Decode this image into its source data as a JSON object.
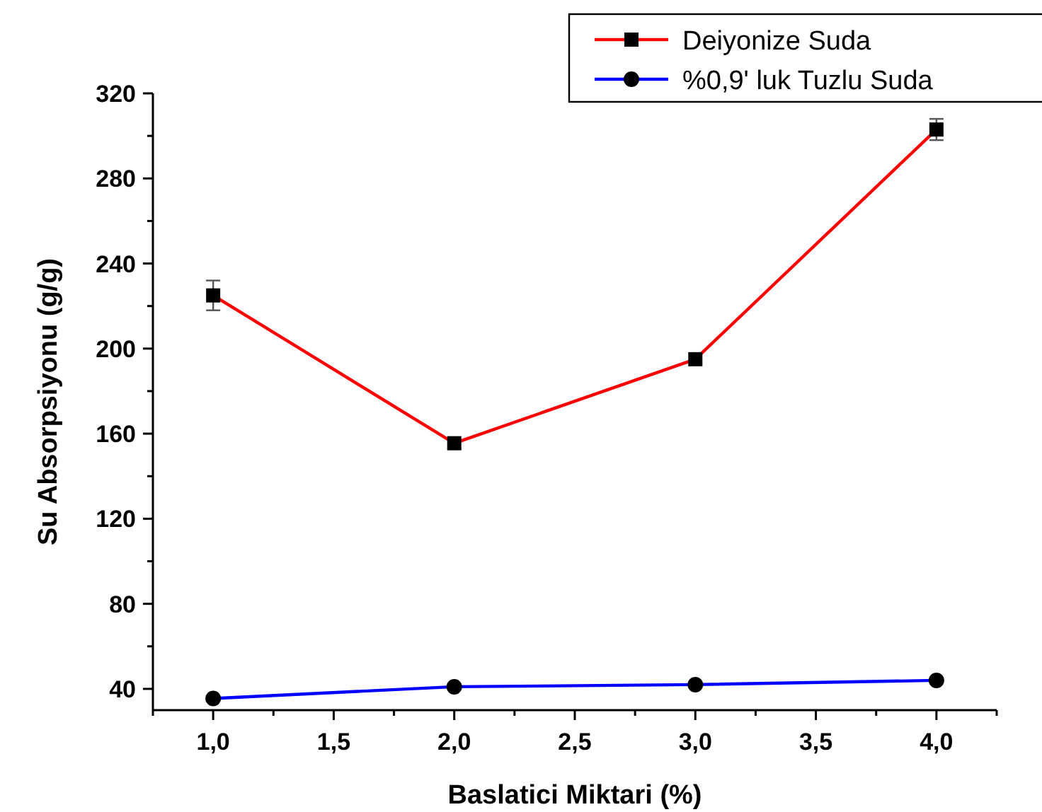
{
  "chart_data": {
    "type": "line",
    "xlabel": "Baslatici Miktari (%)",
    "ylabel": "Su Absorpsiyonu (g/g)",
    "x": [
      1,
      2,
      3,
      4
    ],
    "series": [
      {
        "name": "Deiyonize Suda",
        "color": "#ff0000",
        "marker": "square",
        "values": [
          225,
          155.5,
          195,
          303
        ],
        "errors": [
          7,
          null,
          null,
          5
        ]
      },
      {
        "name": "%0,9' luk Tuzlu Suda",
        "color": "#0000ff",
        "marker": "circle",
        "values": [
          35.5,
          41,
          42,
          44
        ]
      }
    ],
    "xlim": [
      0.75,
      4.25
    ],
    "xticks": [
      {
        "value": 0.75,
        "label": null
      },
      {
        "value": 1,
        "label": "1,0"
      },
      {
        "value": 1.25,
        "label": null
      },
      {
        "value": 1.5,
        "label": "1,5"
      },
      {
        "value": 1.75,
        "label": null
      },
      {
        "value": 2,
        "label": "2,0"
      },
      {
        "value": 2.25,
        "label": null
      },
      {
        "value": 2.5,
        "label": "2,5"
      },
      {
        "value": 2.75,
        "label": null
      },
      {
        "value": 3,
        "label": "3,0"
      },
      {
        "value": 3.25,
        "label": null
      },
      {
        "value": 3.5,
        "label": "3,5"
      },
      {
        "value": 3.75,
        "label": null
      },
      {
        "value": 4,
        "label": "4,0"
      },
      {
        "value": 4.25,
        "label": null
      }
    ],
    "ylim": [
      30,
      320
    ],
    "yticks": [
      40,
      {
        "value": 60,
        "label": null
      },
      80,
      {
        "value": 100,
        "label": null
      },
      120,
      {
        "value": 140,
        "label": null
      },
      160,
      {
        "value": 180,
        "label": null
      },
      200,
      {
        "value": 220,
        "label": null
      },
      240,
      {
        "value": 260,
        "label": null
      },
      280,
      {
        "value": 300,
        "label": null
      },
      320
    ],
    "legend": "top right",
    "grid": false,
    "line_style": "solid"
  }
}
